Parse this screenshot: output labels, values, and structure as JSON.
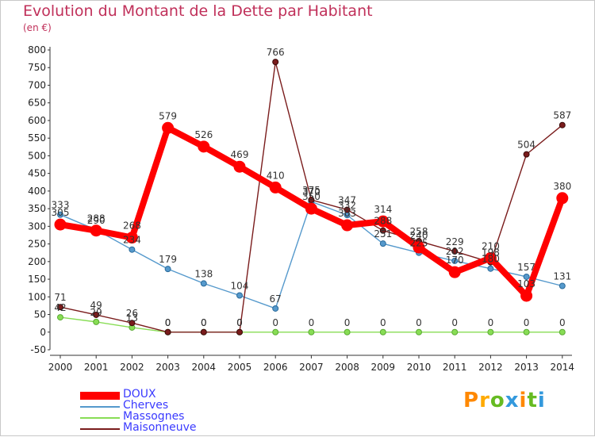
{
  "title": "Evolution du Montant de la Dette par Habitant",
  "subtitle": "(en €)",
  "brand": "Proxiti",
  "colors": {
    "DOUX": "#ff0000",
    "Cherves": "#5599cc",
    "Massognes": "#88dd55",
    "Maisonneuve": "#7a1c1c",
    "axis_labels": "#222222",
    "title": "#c0305a",
    "legend": "#3a3aff"
  },
  "chart_data": {
    "type": "line",
    "x": [
      "2000",
      "2001",
      "2002",
      "2003",
      "2004",
      "2005",
      "2006",
      "2007",
      "2008",
      "2009",
      "2010",
      "2011",
      "2012",
      "2013",
      "2014"
    ],
    "ylim": [
      -50,
      800
    ],
    "yticks": [
      -50,
      0,
      50,
      100,
      150,
      200,
      250,
      300,
      350,
      400,
      450,
      500,
      550,
      600,
      650,
      700,
      750,
      800
    ],
    "grid": false,
    "legend_position": "bottom-left",
    "series": [
      {
        "name": "DOUX",
        "values": [
          305,
          288,
          268,
          579,
          526,
          469,
          410,
          350,
          303,
          314,
          240,
          170,
          210,
          103,
          380
        ]
      },
      {
        "name": "Cherves",
        "values": [
          333,
          290,
          234,
          179,
          138,
          104,
          67,
          370,
          332,
          251,
          225,
          202,
          180,
          157,
          131
        ]
      },
      {
        "name": "Massognes",
        "values": [
          42,
          29,
          13,
          0,
          0,
          0,
          0,
          0,
          0,
          0,
          0,
          0,
          0,
          0,
          0
        ]
      },
      {
        "name": "Maisonneuve",
        "values": [
          71,
          49,
          26,
          0,
          0,
          0,
          766,
          375,
          347,
          288,
          258,
          229,
          198,
          504,
          587
        ]
      }
    ]
  }
}
